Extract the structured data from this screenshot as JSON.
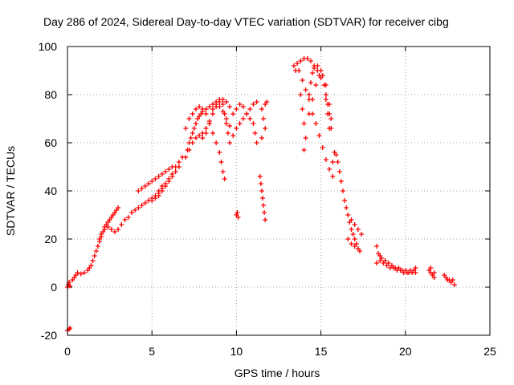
{
  "chart_data": {
    "type": "scatter",
    "title": "Day 286 of 2024, Sidereal Day-to-day VTEC variation (SDTVAR) for receiver cibg",
    "xlabel": "GPS time / hours",
    "ylabel": "SDTVAR / TECUs",
    "xlim": [
      0,
      25
    ],
    "ylim": [
      -20,
      100
    ],
    "xticks": [
      "0",
      "5",
      "10",
      "15",
      "20",
      "25"
    ],
    "yticks": [
      "-20",
      "0",
      "20",
      "40",
      "60",
      "80",
      "100"
    ],
    "grid": true,
    "marker": "+",
    "color": "#ff0000",
    "series": [
      {
        "name": "sdtvar",
        "points": [
          [
            0.0,
            -18
          ],
          [
            0.1,
            -17.5
          ],
          [
            0.15,
            -17
          ],
          [
            0.0,
            0
          ],
          [
            0.05,
            1
          ],
          [
            0.1,
            2
          ],
          [
            0.15,
            0.5
          ],
          [
            0.3,
            3
          ],
          [
            0.4,
            4
          ],
          [
            0.5,
            5
          ],
          [
            0.6,
            6
          ],
          [
            0.8,
            5.5
          ],
          [
            1.0,
            6
          ],
          [
            1.2,
            7
          ],
          [
            1.3,
            8
          ],
          [
            1.4,
            9
          ],
          [
            1.5,
            11
          ],
          [
            1.6,
            13
          ],
          [
            1.7,
            15
          ],
          [
            1.8,
            17
          ],
          [
            1.9,
            19
          ],
          [
            2.0,
            21
          ],
          [
            2.1,
            23
          ],
          [
            2.2,
            25
          ],
          [
            2.3,
            26
          ],
          [
            2.4,
            27
          ],
          [
            2.5,
            28
          ],
          [
            2.6,
            29
          ],
          [
            2.7,
            30
          ],
          [
            2.8,
            31
          ],
          [
            2.9,
            32
          ],
          [
            3.0,
            33
          ],
          [
            1.9,
            20
          ],
          [
            2.0,
            22
          ],
          [
            2.2,
            24
          ],
          [
            2.4,
            25
          ],
          [
            2.6,
            24
          ],
          [
            2.8,
            23
          ],
          [
            3.0,
            24
          ],
          [
            3.2,
            26
          ],
          [
            3.4,
            28
          ],
          [
            3.6,
            29
          ],
          [
            3.8,
            31
          ],
          [
            4.0,
            32
          ],
          [
            4.2,
            33
          ],
          [
            4.4,
            34
          ],
          [
            4.6,
            35
          ],
          [
            4.8,
            36
          ],
          [
            5.0,
            37
          ],
          [
            5.2,
            38
          ],
          [
            5.4,
            40
          ],
          [
            5.6,
            42
          ],
          [
            4.2,
            40
          ],
          [
            4.4,
            41
          ],
          [
            4.6,
            42
          ],
          [
            4.8,
            43
          ],
          [
            5.0,
            44
          ],
          [
            5.2,
            45
          ],
          [
            5.4,
            46
          ],
          [
            5.6,
            47
          ],
          [
            5.8,
            48
          ],
          [
            6.0,
            49
          ],
          [
            6.2,
            50
          ],
          [
            5.0,
            36
          ],
          [
            5.2,
            37
          ],
          [
            5.4,
            39
          ],
          [
            5.6,
            41
          ],
          [
            5.8,
            43
          ],
          [
            6.0,
            45
          ],
          [
            6.2,
            47
          ],
          [
            6.4,
            50
          ],
          [
            6.6,
            52
          ],
          [
            6.8,
            54
          ],
          [
            5.4,
            38
          ],
          [
            5.6,
            40
          ],
          [
            5.8,
            42
          ],
          [
            6.0,
            44
          ],
          [
            6.2,
            46
          ],
          [
            6.4,
            48
          ],
          [
            6.6,
            50
          ],
          [
            7.0,
            54
          ],
          [
            7.1,
            57
          ],
          [
            7.2,
            60
          ],
          [
            7.3,
            62
          ],
          [
            7.4,
            64
          ],
          [
            7.5,
            66
          ],
          [
            7.6,
            68
          ],
          [
            7.7,
            70
          ],
          [
            7.8,
            71
          ],
          [
            7.9,
            72
          ],
          [
            8.0,
            73
          ],
          [
            8.2,
            74
          ],
          [
            8.4,
            75
          ],
          [
            8.6,
            76
          ],
          [
            8.8,
            76
          ],
          [
            9.0,
            75
          ],
          [
            9.2,
            73
          ],
          [
            9.4,
            70
          ],
          [
            9.6,
            67
          ],
          [
            9.8,
            63
          ],
          [
            7.0,
            66
          ],
          [
            7.2,
            70
          ],
          [
            7.4,
            72
          ],
          [
            7.6,
            74
          ],
          [
            7.8,
            75
          ],
          [
            8.0,
            74
          ],
          [
            8.2,
            72
          ],
          [
            8.4,
            68
          ],
          [
            8.6,
            64
          ],
          [
            8.8,
            60
          ],
          [
            9.0,
            56
          ],
          [
            9.1,
            52
          ],
          [
            9.2,
            48
          ],
          [
            9.3,
            45
          ],
          [
            7.2,
            57
          ],
          [
            7.4,
            60
          ],
          [
            7.6,
            62
          ],
          [
            7.8,
            63
          ],
          [
            8.0,
            64
          ],
          [
            8.2,
            66
          ],
          [
            8.4,
            69
          ],
          [
            8.6,
            72
          ],
          [
            8.8,
            75
          ],
          [
            9.0,
            77
          ],
          [
            9.2,
            78
          ],
          [
            9.4,
            77
          ],
          [
            9.6,
            75
          ],
          [
            9.8,
            72
          ],
          [
            8.0,
            62
          ],
          [
            8.2,
            64
          ],
          [
            8.4,
            68
          ],
          [
            8.6,
            74
          ],
          [
            8.8,
            77
          ],
          [
            9.0,
            78
          ],
          [
            9.2,
            76
          ],
          [
            9.3,
            72
          ],
          [
            9.4,
            68
          ],
          [
            9.5,
            64
          ],
          [
            9.6,
            60
          ],
          [
            10.0,
            30
          ],
          [
            10.05,
            31
          ],
          [
            10.1,
            29
          ],
          [
            10.0,
            74
          ],
          [
            10.2,
            76
          ],
          [
            10.4,
            75
          ],
          [
            10.6,
            72
          ],
          [
            10.8,
            70
          ],
          [
            11.0,
            68
          ],
          [
            11.1,
            64
          ],
          [
            11.2,
            60
          ],
          [
            10.0,
            66
          ],
          [
            10.2,
            68
          ],
          [
            10.4,
            70
          ],
          [
            10.6,
            72
          ],
          [
            10.8,
            74
          ],
          [
            11.0,
            76
          ],
          [
            11.2,
            77
          ],
          [
            11.4,
            46
          ],
          [
            11.45,
            43
          ],
          [
            11.5,
            40
          ],
          [
            11.55,
            37
          ],
          [
            11.6,
            34
          ],
          [
            11.65,
            31
          ],
          [
            11.7,
            28
          ],
          [
            11.5,
            74
          ],
          [
            11.6,
            70
          ],
          [
            11.7,
            66
          ],
          [
            11.5,
            62
          ],
          [
            11.7,
            76
          ],
          [
            11.8,
            77
          ],
          [
            13.4,
            92
          ],
          [
            13.5,
            90
          ],
          [
            13.6,
            93
          ],
          [
            13.8,
            94
          ],
          [
            14.0,
            95
          ],
          [
            14.2,
            95
          ],
          [
            14.4,
            94
          ],
          [
            14.6,
            92
          ],
          [
            14.8,
            90
          ],
          [
            15.0,
            87
          ],
          [
            15.2,
            84
          ],
          [
            15.3,
            80
          ],
          [
            15.4,
            76
          ],
          [
            15.5,
            72
          ],
          [
            15.6,
            66
          ],
          [
            13.7,
            90
          ],
          [
            13.9,
            86
          ],
          [
            14.1,
            82
          ],
          [
            14.3,
            78
          ],
          [
            14.5,
            72
          ],
          [
            14.7,
            68
          ],
          [
            14.9,
            63
          ],
          [
            15.1,
            58
          ],
          [
            15.3,
            53
          ],
          [
            15.5,
            49
          ],
          [
            15.7,
            46
          ],
          [
            13.8,
            80
          ],
          [
            13.9,
            74
          ],
          [
            14.0,
            68
          ],
          [
            14.1,
            62
          ],
          [
            14.0,
            57
          ],
          [
            14.3,
            80
          ],
          [
            14.4,
            85
          ],
          [
            14.5,
            89
          ],
          [
            14.6,
            91
          ],
          [
            14.8,
            92
          ],
          [
            15.0,
            90
          ],
          [
            15.2,
            84
          ],
          [
            15.3,
            78
          ],
          [
            15.4,
            72
          ],
          [
            15.5,
            66
          ],
          [
            14.3,
            72
          ],
          [
            14.5,
            78
          ],
          [
            14.7,
            84
          ],
          [
            14.9,
            88
          ],
          [
            15.1,
            88
          ],
          [
            15.3,
            84
          ],
          [
            15.5,
            76
          ],
          [
            15.6,
            70
          ],
          [
            15.7,
            52
          ],
          [
            15.8,
            56
          ],
          [
            15.9,
            55
          ],
          [
            16.0,
            52
          ],
          [
            16.1,
            48
          ],
          [
            16.2,
            44
          ],
          [
            16.3,
            40
          ],
          [
            16.4,
            36
          ],
          [
            16.5,
            33
          ],
          [
            16.6,
            30
          ],
          [
            16.7,
            27
          ],
          [
            16.8,
            24
          ],
          [
            16.9,
            22
          ],
          [
            17.0,
            20
          ],
          [
            17.1,
            18
          ],
          [
            17.2,
            16
          ],
          [
            17.3,
            15
          ],
          [
            16.8,
            28
          ],
          [
            17.0,
            26
          ],
          [
            17.2,
            24
          ],
          [
            17.4,
            22
          ],
          [
            16.6,
            20
          ],
          [
            16.8,
            18
          ],
          [
            17.0,
            17
          ],
          [
            18.3,
            17
          ],
          [
            18.4,
            14
          ],
          [
            18.5,
            13
          ],
          [
            18.6,
            12
          ],
          [
            18.8,
            11
          ],
          [
            19.0,
            10
          ],
          [
            19.2,
            9
          ],
          [
            19.4,
            8
          ],
          [
            19.6,
            8
          ],
          [
            19.8,
            7
          ],
          [
            20.0,
            7
          ],
          [
            20.2,
            6
          ],
          [
            20.4,
            6
          ],
          [
            20.6,
            6
          ],
          [
            18.3,
            10
          ],
          [
            18.5,
            11
          ],
          [
            18.7,
            10
          ],
          [
            18.9,
            9
          ],
          [
            19.1,
            8
          ],
          [
            19.3,
            8
          ],
          [
            19.5,
            7
          ],
          [
            19.7,
            7
          ],
          [
            19.9,
            6
          ],
          [
            20.1,
            6
          ],
          [
            20.3,
            7
          ],
          [
            20.5,
            7
          ],
          [
            20.6,
            8
          ],
          [
            21.4,
            7
          ],
          [
            21.5,
            6
          ],
          [
            21.6,
            5
          ],
          [
            21.7,
            4
          ],
          [
            21.5,
            8
          ],
          [
            21.7,
            6
          ],
          [
            22.3,
            5
          ],
          [
            22.4,
            4
          ],
          [
            22.5,
            3
          ],
          [
            22.6,
            3
          ],
          [
            22.7,
            2
          ],
          [
            22.8,
            3
          ],
          [
            22.9,
            1
          ]
        ]
      }
    ]
  }
}
